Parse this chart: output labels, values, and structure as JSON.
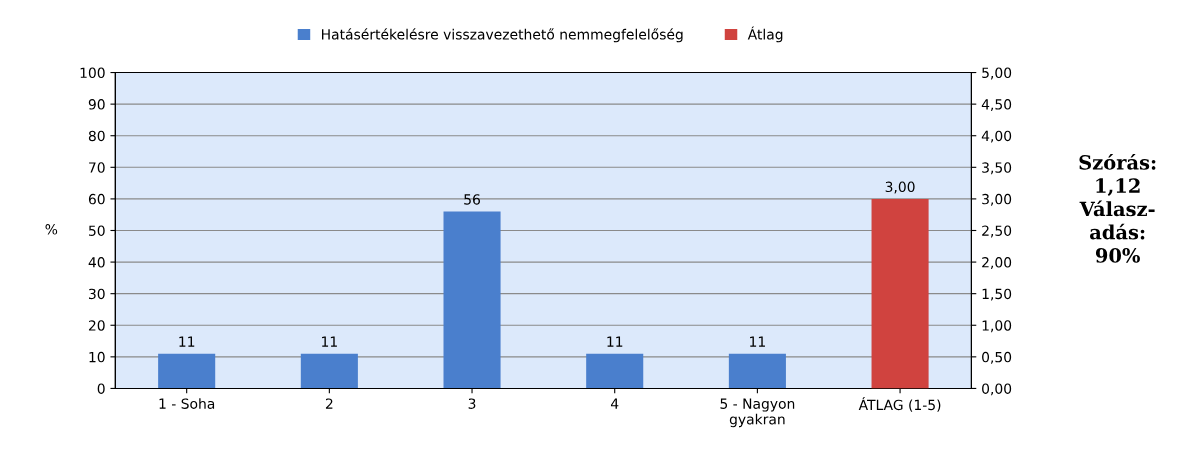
{
  "chart_data": {
    "type": "bar",
    "categories": [
      "1 - Soha",
      "2",
      "3",
      "4",
      "5 - Nagyon\ngyakran",
      "ÁTLAG (1-5)"
    ],
    "series": [
      {
        "name": "Hatásértékelésre visszavezethető nemmegfelelőség",
        "color": "#4a7fcd",
        "values": [
          11,
          11,
          56,
          11,
          11,
          null
        ],
        "value_labels": [
          "11",
          "11",
          "56",
          "11",
          "11",
          null
        ]
      },
      {
        "name": "Átlag",
        "color": "#d0433f",
        "axis": "y2",
        "values": [
          null,
          null,
          null,
          null,
          null,
          3.0
        ],
        "value_labels": [
          null,
          null,
          null,
          null,
          null,
          "3,00"
        ]
      }
    ],
    "ylabel": "%",
    "ylim": [
      0,
      100
    ],
    "yticks": [
      0,
      10,
      20,
      30,
      40,
      50,
      60,
      70,
      80,
      90,
      100
    ],
    "y2lim": [
      0,
      5
    ],
    "y2ticks": [
      {
        "value": 0,
        "label": "0,00"
      },
      {
        "value": 0.5,
        "label": "0,50"
      },
      {
        "value": 1,
        "label": "1,00"
      },
      {
        "value": 1.5,
        "label": "1,50"
      },
      {
        "value": 2,
        "label": "2,00"
      },
      {
        "value": 2.5,
        "label": "2,50"
      },
      {
        "value": 3,
        "label": "3,00"
      },
      {
        "value": 3.5,
        "label": "3,50"
      },
      {
        "value": 4,
        "label": "4,00"
      },
      {
        "value": 4.5,
        "label": "4,50"
      },
      {
        "value": 5,
        "label": "5,00"
      }
    ],
    "grid": "y",
    "legend": "top",
    "annotations": [
      "Szórás:\n1,12\nVálasz-\nadás:\n90%"
    ]
  }
}
